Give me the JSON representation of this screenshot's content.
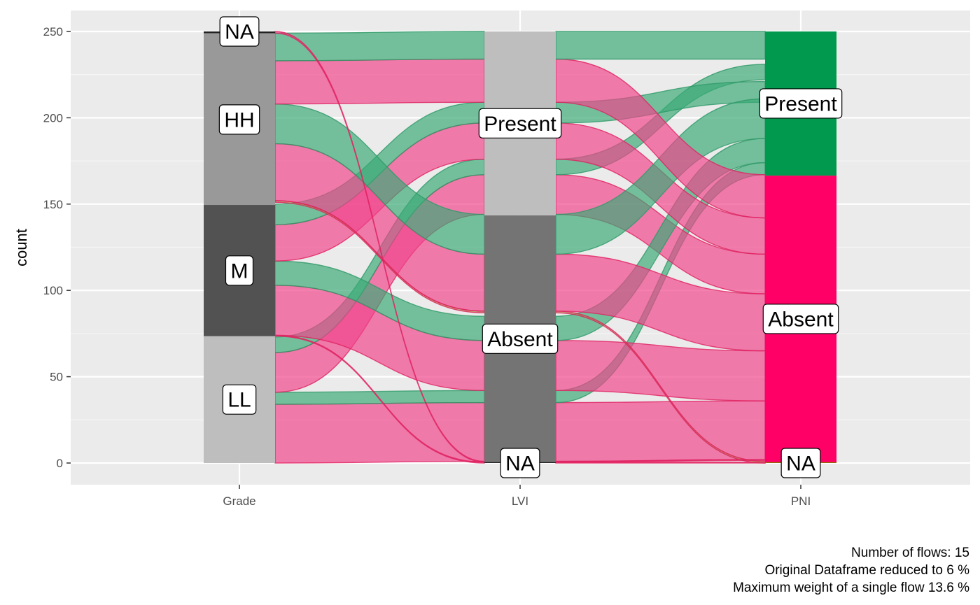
{
  "chart_data": {
    "type": "alluvial",
    "title": "",
    "xlabel": "",
    "ylabel": "count",
    "ylim": [
      -12,
      262
    ],
    "y_ticks": [
      0,
      50,
      100,
      150,
      200,
      250
    ],
    "grid": true,
    "legend": "none",
    "axes": [
      {
        "name": "Grade",
        "strata": [
          {
            "label": "LL",
            "from": 0,
            "to": 73.5,
            "color": "#BEBEBE"
          },
          {
            "label": "M",
            "from": 73.5,
            "to": 149.5,
            "color": "#525252"
          },
          {
            "label": "HH",
            "from": 149.5,
            "to": 249,
            "color": "#999999"
          },
          {
            "label": "NA",
            "from": 249,
            "to": 250,
            "color": "#222222"
          }
        ]
      },
      {
        "name": "LVI",
        "strata": [
          {
            "label": "NA",
            "from": 0,
            "to": 0.5,
            "color": "#222222"
          },
          {
            "label": "Absent",
            "from": 0.5,
            "to": 143.5,
            "color": "#747474"
          },
          {
            "label": "Present",
            "from": 143.5,
            "to": 250,
            "color": "#BEBEBE"
          }
        ]
      },
      {
        "name": "PNI",
        "strata": [
          {
            "label": "NA",
            "from": 0,
            "to": 0.5,
            "color": "#8B6E00"
          },
          {
            "label": "Absent",
            "from": 0.5,
            "to": 166.5,
            "color": "#FF0066"
          },
          {
            "label": "Present",
            "from": 166.5,
            "to": 250,
            "color": "#00994D"
          }
        ]
      }
    ],
    "flows": [
      {
        "grade": "LL",
        "lvi": "Absent",
        "pni": "Absent",
        "count": 34,
        "ys": [
          0,
          34
        ],
        "ym": [
          1,
          35
        ],
        "ye": [
          2,
          36
        ],
        "color": "#F0448A"
      },
      {
        "grade": "LL",
        "lvi": "Absent",
        "pni": "Present",
        "count": 7,
        "ys": [
          34,
          41
        ],
        "ym": [
          35,
          42
        ],
        "ye": [
          167,
          174
        ],
        "color": "#3AAA76"
      },
      {
        "grade": "LL",
        "lvi": "Present",
        "pni": "Absent",
        "count": 23,
        "ys": [
          41,
          64
        ],
        "ym": [
          144,
          167
        ],
        "ye": [
          98,
          121
        ],
        "color": "#F0448A"
      },
      {
        "grade": "LL",
        "lvi": "Present",
        "pni": "Present",
        "count": 9,
        "ys": [
          64,
          73
        ],
        "ym": [
          167,
          176
        ],
        "ye": [
          222,
          231
        ],
        "color": "#3AAA76"
      },
      {
        "grade": "M",
        "lvi": "NA",
        "pni": "NA",
        "count": 0.5,
        "ys": [
          73.5,
          74
        ],
        "ym": [
          0,
          0.5
        ],
        "ye": [
          0,
          0.5
        ],
        "color": "#E8327A"
      },
      {
        "grade": "M",
        "lvi": "Absent",
        "pni": "Absent",
        "count": 29,
        "ys": [
          74,
          103
        ],
        "ym": [
          42,
          71
        ],
        "ye": [
          36,
          65
        ],
        "color": "#F0448A"
      },
      {
        "grade": "M",
        "lvi": "Absent",
        "pni": "Present",
        "count": 14,
        "ys": [
          103,
          117
        ],
        "ym": [
          71,
          85
        ],
        "ye": [
          174,
          188
        ],
        "color": "#3AAA76"
      },
      {
        "grade": "M",
        "lvi": "Present",
        "pni": "Absent",
        "count": 21,
        "ys": [
          117,
          138
        ],
        "ym": [
          176,
          197
        ],
        "ye": [
          121,
          142
        ],
        "color": "#F0448A"
      },
      {
        "grade": "M",
        "lvi": "Present",
        "pni": "Present",
        "count": 12,
        "ys": [
          138,
          150
        ],
        "ym": [
          197,
          209
        ],
        "ye": [
          209,
          221
        ],
        "color": "#3AAA76"
      },
      {
        "grade": "HH",
        "lvi": "NA",
        "pni": "NA",
        "count": 1,
        "ys": [
          151,
          152
        ],
        "ym": [
          87,
          88
        ],
        "ye": [
          0,
          1
        ],
        "color": "#B07A40"
      },
      {
        "grade": "HH",
        "lvi": "Absent",
        "pni": "Absent",
        "count": 33,
        "ys": [
          152,
          185
        ],
        "ym": [
          88,
          121
        ],
        "ye": [
          65,
          98
        ],
        "color": "#F0448A"
      },
      {
        "grade": "HH",
        "lvi": "Absent",
        "pni": "Present",
        "count": 23,
        "ys": [
          185,
          208
        ],
        "ym": [
          121,
          144
        ],
        "ye": [
          188,
          211
        ],
        "color": "#3AAA76"
      },
      {
        "grade": "HH",
        "lvi": "Present",
        "pni": "Absent",
        "count": 25,
        "ys": [
          208,
          233
        ],
        "ym": [
          209,
          234
        ],
        "ye": [
          142,
          167
        ],
        "color": "#F0448A"
      },
      {
        "grade": "HH",
        "lvi": "Present",
        "pni": "Present",
        "count": 16,
        "ys": [
          233,
          249
        ],
        "ym": [
          234,
          250
        ],
        "ye": [
          234,
          250
        ],
        "color": "#3AAA76"
      },
      {
        "grade": "NA",
        "lvi": "NA",
        "pni": "NA",
        "count": 1,
        "ys": [
          249,
          250
        ],
        "ym": [
          0.5,
          1
        ],
        "ye": [
          1.5,
          2
        ],
        "color": "#E8327A"
      }
    ]
  },
  "caption": {
    "line1": "Number of flows: 15",
    "line2": "Original Dataframe reduced to 6 %",
    "line3": "Maximum weight of a single flow 13.6 %"
  }
}
